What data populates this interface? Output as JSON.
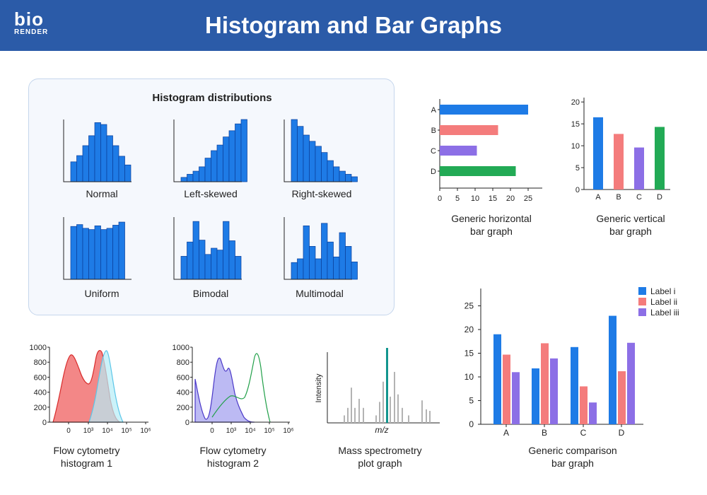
{
  "header": {
    "title": "Histogram and Bar Graphs",
    "logo_top": "bio",
    "logo_bottom": "RENDER"
  },
  "colors": {
    "header": "#2b5ba8",
    "blue": "#1e7be6",
    "red": "#f47c7c",
    "purple": "#8c6fe6",
    "green": "#22aa55",
    "teal": "#12958e",
    "gray": "#b3b3b3",
    "cyan": "#a8e4f4"
  },
  "histograms": {
    "title": "Histogram distributions",
    "items": [
      {
        "label": "Normal",
        "bars": [
          0.32,
          0.42,
          0.58,
          0.74,
          0.95,
          0.92,
          0.74,
          0.58,
          0.41,
          0.27
        ]
      },
      {
        "label": "Left-skewed",
        "bars": [
          0.07,
          0.12,
          0.17,
          0.24,
          0.38,
          0.5,
          0.59,
          0.72,
          0.82,
          0.93,
          1.0
        ]
      },
      {
        "label": "Right-skewed",
        "bars": [
          1.0,
          0.89,
          0.75,
          0.65,
          0.57,
          0.47,
          0.34,
          0.24,
          0.17,
          0.12,
          0.08
        ]
      },
      {
        "label": "Uniform",
        "bars": [
          0.85,
          0.88,
          0.82,
          0.8,
          0.86,
          0.8,
          0.82,
          0.87,
          0.92
        ]
      },
      {
        "label": "Bimodal",
        "bars": [
          0.37,
          0.6,
          0.93,
          0.63,
          0.4,
          0.5,
          0.47,
          0.93,
          0.62,
          0.37
        ]
      },
      {
        "label": "Multimodal",
        "bars": [
          0.27,
          0.33,
          0.86,
          0.53,
          0.33,
          0.9,
          0.6,
          0.36,
          0.75,
          0.53,
          0.28
        ]
      }
    ]
  },
  "hbar": {
    "caption_line1": "Generic horizontal",
    "caption_line2": "bar graph",
    "chart_data": {
      "type": "bar",
      "orientation": "horizontal",
      "categories": [
        "A",
        "B",
        "C",
        "D"
      ],
      "values": [
        25,
        16.5,
        10.5,
        21.5
      ],
      "xlim": [
        0,
        29
      ],
      "xticks": [
        "0",
        "5",
        "10",
        "15",
        "20",
        "25"
      ]
    }
  },
  "vbar": {
    "caption_line1": "Generic vertical",
    "caption_line2": "bar graph",
    "chart_data": {
      "type": "bar",
      "orientation": "vertical",
      "categories": [
        "A",
        "B",
        "C",
        "D"
      ],
      "values": [
        16.5,
        12.7,
        9.6,
        14.3
      ],
      "ylim": [
        0,
        21
      ],
      "yticks": [
        "0",
        "5",
        "10",
        "15",
        "20"
      ]
    }
  },
  "flow1": {
    "caption_line1": "Flow cytometry",
    "caption_line2": "histogram 1",
    "yticks": [
      "0",
      "200",
      "400",
      "600",
      "800",
      "1000"
    ],
    "xticks": [
      "0",
      "10³",
      "10⁴",
      "10⁵",
      "10⁶"
    ]
  },
  "flow2": {
    "caption_line1": "Flow cytometry",
    "caption_line2": "histogram 2",
    "yticks": [
      "0",
      "200",
      "400",
      "600",
      "800",
      "1000"
    ],
    "xticks": [
      "0",
      "10³",
      "10⁴",
      "10⁵",
      "10⁶"
    ]
  },
  "mass": {
    "caption_line1": "Mass spectrometry",
    "caption_line2": "plot graph",
    "ylabel": "Intensity",
    "xlabel": "m/z",
    "peaks": [
      0.1,
      0.2,
      0.47,
      0.2,
      0.32,
      0.2,
      0.1,
      0.28,
      0.55,
      1.0,
      0.35,
      0.68,
      0.38,
      0.2,
      0.1,
      0.3,
      0.18,
      0.16
    ]
  },
  "comparison": {
    "caption_line1": "Generic comparison",
    "caption_line2": "bar graph",
    "chart_data": {
      "type": "bar",
      "categories": [
        "A",
        "B",
        "C",
        "D"
      ],
      "ylim": [
        0,
        28
      ],
      "yticks": [
        "0",
        "5",
        "10",
        "15",
        "20",
        "25"
      ],
      "series": [
        {
          "name": "Label i",
          "values": [
            19,
            11.8,
            16.3,
            22.9
          ]
        },
        {
          "name": "Label ii",
          "values": [
            14.7,
            17.1,
            8,
            11.2
          ]
        },
        {
          "name": "Label iii",
          "values": [
            11,
            13.9,
            4.6,
            17.2
          ]
        }
      ]
    }
  }
}
